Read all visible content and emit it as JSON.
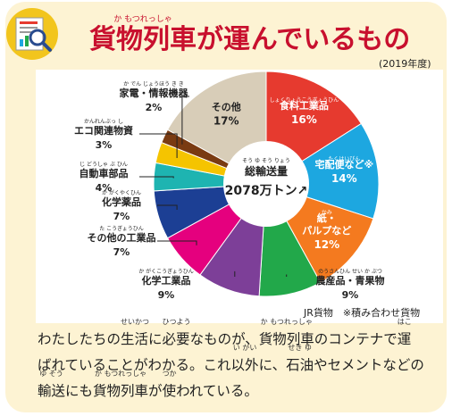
{
  "header": {
    "title_parts": [
      {
        "text": "貨物列車",
        "ruby": "か もつれっしゃ"
      },
      {
        "text": "が"
      },
      {
        "text": "運",
        "ruby": ""
      },
      {
        "text": "んでいるもの"
      }
    ],
    "year_note": "(2019年度)"
  },
  "chart_data": {
    "type": "pie",
    "title": "",
    "center_label": {
      "ruby": "そう ゆ そう りょう",
      "line1": "総輸送量",
      "line2": "2078万トン↗"
    },
    "slices": [
      {
        "label": "食料工業品",
        "ruby": "しょくりょうこうぎょうひん",
        "value": 16,
        "color": "#e63a2f"
      },
      {
        "label": "宅配便など※",
        "ruby": "たくはいびん",
        "value": 14,
        "color": "#1da7e0"
      },
      {
        "label": "紙・パルプなど",
        "ruby": "かみ",
        "value": 12,
        "color": "#f47a1f"
      },
      {
        "label": "農産品・青果物",
        "ruby": "のうさんひん せい か ぶつ",
        "value": 9,
        "color": "#22a84a"
      },
      {
        "label": "化学工業品",
        "ruby": "か がくこうぎょうひん",
        "value": 9,
        "color": "#7d3f98"
      },
      {
        "label": "その他の工業品",
        "ruby": "た こうぎょうひん",
        "value": 7,
        "color": "#e5007e"
      },
      {
        "label": "化学薬品",
        "ruby": "か がくやくひん",
        "value": 7,
        "color": "#1c3f94"
      },
      {
        "label": "自動車部品",
        "ruby": "じ どうしゃ ぶ ひん",
        "value": 4,
        "color": "#1eb4b1"
      },
      {
        "label": "エコ関連物資",
        "ruby": "かんれんぶっ し",
        "value": 3,
        "color": "#f5c400"
      },
      {
        "label": "家電・情報機器",
        "ruby": "か でん じょうほう き き",
        "value": 2,
        "color": "#7a3b12"
      },
      {
        "label": "その他",
        "ruby": "",
        "value": 17,
        "color": "#d8cdb8"
      }
    ],
    "units": "%"
  },
  "footnote": "JR貨物　※積み合わせ貨物",
  "body": {
    "lines": [
      [
        {
          "t": "わたしたちの"
        },
        {
          "t": "生活",
          "r": "せいかつ"
        },
        {
          "t": "に"
        },
        {
          "t": "必要",
          "r": "ひつよう"
        },
        {
          "t": "なものが、"
        },
        {
          "t": "貨物列車",
          "r": "か もつれっしゃ"
        },
        {
          "t": "のコンテナで"
        },
        {
          "t": "運",
          "r": "はこ"
        }
      ],
      [
        {
          "t": "ばれていることがわかる。これ"
        },
        {
          "t": "以外",
          "r": "い がい"
        },
        {
          "t": "に、"
        },
        {
          "t": "石油",
          "r": "せき ゆ"
        },
        {
          "t": "やセメントなどの"
        }
      ],
      [
        {
          "t": "輸送",
          "r": "ゆ そう"
        },
        {
          "t": "にも"
        },
        {
          "t": "貨物列車",
          "r": "か もつれっしゃ"
        },
        {
          "t": "が"
        },
        {
          "t": "使",
          "r": "つか"
        },
        {
          "t": "われている。"
        }
      ]
    ]
  }
}
